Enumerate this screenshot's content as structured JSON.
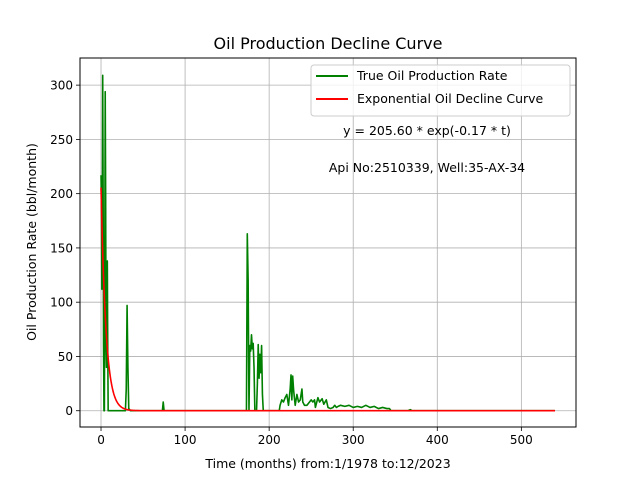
{
  "chart_data": {
    "type": "line",
    "title": "Oil Production Decline Curve",
    "xlabel": "Time (months) from:1/1978 to:12/2023",
    "ylabel": "Oil Production Rate (bbl/month)",
    "xlim": [
      -25,
      565
    ],
    "ylim": [
      -15,
      325
    ],
    "xticks": [
      0,
      100,
      200,
      300,
      400,
      500
    ],
    "yticks": [
      0,
      50,
      100,
      150,
      200,
      250,
      300
    ],
    "grid": true,
    "legend_position": "top-right",
    "annotations": {
      "equation": "y = 205.60 * exp(-0.17 * t)",
      "well": "Api No:2510339, Well:35-AX-34"
    },
    "series": [
      {
        "name": "True Oil Production Rate",
        "color": "#008000",
        "points": [
          [
            0,
            217
          ],
          [
            0.5,
            190
          ],
          [
            1,
            112
          ],
          [
            1.5,
            140
          ],
          [
            2,
            309
          ],
          [
            2.5,
            200
          ],
          [
            3,
            60
          ],
          [
            3.5,
            0
          ],
          [
            4,
            0
          ],
          [
            4.5,
            140
          ],
          [
            5,
            294
          ],
          [
            5.5,
            200
          ],
          [
            6,
            60
          ],
          [
            6.5,
            40
          ],
          [
            7,
            110
          ],
          [
            7.5,
            138
          ],
          [
            8,
            60
          ],
          [
            8.5,
            0
          ],
          [
            10,
            0
          ],
          [
            20,
            0
          ],
          [
            29,
            0
          ],
          [
            30,
            20
          ],
          [
            31,
            97
          ],
          [
            32,
            40
          ],
          [
            33,
            2
          ],
          [
            35,
            0
          ],
          [
            50,
            0
          ],
          [
            73,
            0
          ],
          [
            74,
            8
          ],
          [
            75,
            0
          ],
          [
            100,
            0
          ],
          [
            140,
            0
          ],
          [
            173,
            0
          ],
          [
            174,
            163
          ],
          [
            175,
            120
          ],
          [
            176,
            0
          ],
          [
            177,
            60
          ],
          [
            178,
            55
          ],
          [
            179,
            70
          ],
          [
            180,
            57
          ],
          [
            181,
            62
          ],
          [
            182,
            40
          ],
          [
            183,
            0
          ],
          [
            185,
            0
          ],
          [
            186,
            25
          ],
          [
            187,
            61
          ],
          [
            188,
            30
          ],
          [
            189,
            52
          ],
          [
            190,
            35
          ],
          [
            191,
            60
          ],
          [
            192,
            15
          ],
          [
            193,
            0
          ],
          [
            200,
            0
          ],
          [
            212,
            0
          ],
          [
            213,
            5
          ],
          [
            215,
            10
          ],
          [
            217,
            8
          ],
          [
            219,
            12
          ],
          [
            221,
            15
          ],
          [
            223,
            5
          ],
          [
            225,
            20
          ],
          [
            226,
            33
          ],
          [
            227,
            10
          ],
          [
            228,
            32
          ],
          [
            229,
            20
          ],
          [
            230,
            12
          ],
          [
            231,
            5
          ],
          [
            233,
            15
          ],
          [
            235,
            8
          ],
          [
            237,
            10
          ],
          [
            239,
            20
          ],
          [
            240,
            8
          ],
          [
            242,
            5
          ],
          [
            245,
            5
          ],
          [
            248,
            8
          ],
          [
            250,
            10
          ],
          [
            252,
            8
          ],
          [
            254,
            10
          ],
          [
            255,
            3
          ],
          [
            258,
            12
          ],
          [
            260,
            8
          ],
          [
            263,
            11
          ],
          [
            265,
            6
          ],
          [
            268,
            10
          ],
          [
            270,
            3
          ],
          [
            273,
            2
          ],
          [
            276,
            3
          ],
          [
            278,
            5
          ],
          [
            280,
            3
          ],
          [
            282,
            4
          ],
          [
            285,
            5
          ],
          [
            290,
            4
          ],
          [
            295,
            5
          ],
          [
            300,
            3
          ],
          [
            305,
            4
          ],
          [
            310,
            3
          ],
          [
            315,
            5
          ],
          [
            320,
            3
          ],
          [
            325,
            4
          ],
          [
            330,
            2
          ],
          [
            335,
            3
          ],
          [
            340,
            2
          ],
          [
            343,
            2
          ],
          [
            345,
            0
          ],
          [
            365,
            0
          ],
          [
            368,
            1
          ],
          [
            370,
            0
          ],
          [
            540,
            0
          ]
        ]
      },
      {
        "name": "Exponential Oil Decline Curve",
        "color": "#ff0000",
        "model": {
          "a": 205.6,
          "b": 0.17
        },
        "x_range": [
          0,
          540
        ]
      }
    ]
  }
}
